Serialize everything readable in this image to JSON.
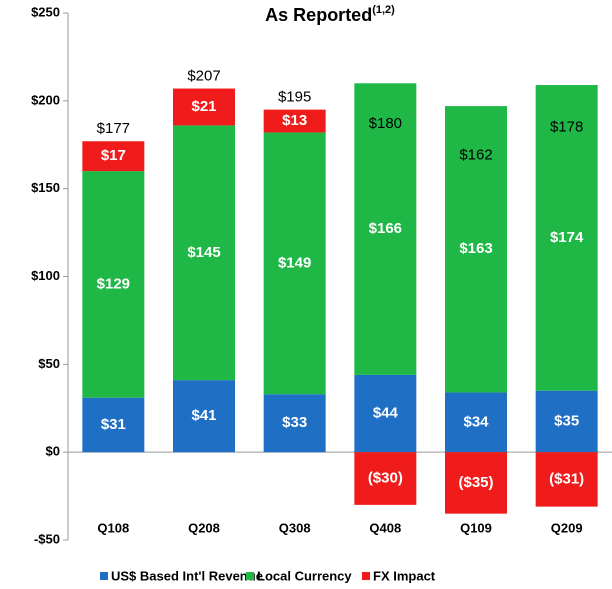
{
  "chart_data": {
    "type": "stacked_bar",
    "title": "As Reported",
    "title_superscript": "(1,2)",
    "categories": [
      "Q108",
      "Q208",
      "Q308",
      "Q408",
      "Q109",
      "Q209"
    ],
    "series": [
      {
        "name": "US$ Based Int'l Revenue",
        "color": "#1f6fc5",
        "values": [
          31,
          41,
          33,
          44,
          34,
          35
        ],
        "value_labels": [
          "$31",
          "$41",
          "$33",
          "$44",
          "$34",
          "$35"
        ]
      },
      {
        "name": "Local Currency",
        "color": "#1fb847",
        "values": [
          129,
          145,
          149,
          166,
          163,
          174
        ],
        "value_labels": [
          "$129",
          "$145",
          "$149",
          "$166",
          "$163",
          "$174"
        ]
      },
      {
        "name": "FX Impact",
        "color": "#f01c1c",
        "values": [
          17,
          21,
          13,
          -30,
          -35,
          -31
        ],
        "value_labels": [
          "$17",
          "$21",
          "$13",
          "($30)",
          "($35)",
          "($31)"
        ]
      }
    ],
    "totals": [
      177,
      207,
      195,
      180,
      162,
      178
    ],
    "total_labels": [
      "$177",
      "$207",
      "$195",
      "$180",
      "$162",
      "$178"
    ],
    "ylim": [
      -50,
      250
    ],
    "yticks": [
      {
        "value": 250,
        "label": "$250"
      },
      {
        "value": 200,
        "label": "$200"
      },
      {
        "value": 150,
        "label": "$150"
      },
      {
        "value": 100,
        "label": "$100"
      },
      {
        "value": 50,
        "label": "$50"
      },
      {
        "value": 0,
        "label": "$0"
      },
      {
        "value": -50,
        "label": "-$50"
      }
    ],
    "legend": "bottom"
  }
}
